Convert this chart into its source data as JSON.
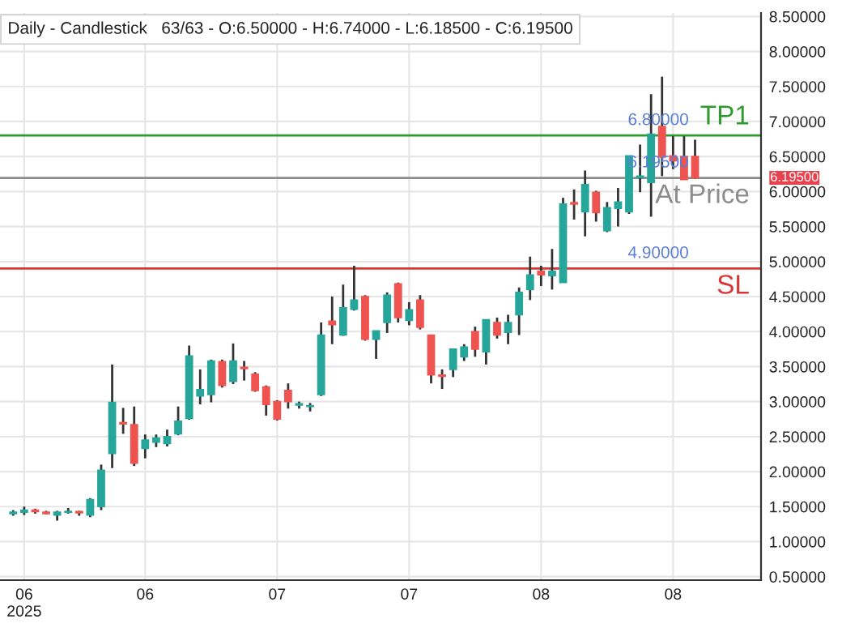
{
  "chart_data": {
    "type": "candlestick",
    "title": "Daily - Candlestick   63/63 - O:6.50000 - H:6.74000 - L:6.18500 - C:6.19500",
    "categories": [
      null,
      "06\n2025",
      null,
      null,
      null,
      null,
      null,
      null,
      null,
      null,
      null,
      null,
      "06",
      null,
      null,
      null,
      null,
      null,
      null,
      null,
      null,
      null,
      null,
      null,
      "07",
      null,
      null,
      null,
      null,
      null,
      null,
      null,
      null,
      null,
      null,
      null,
      "07",
      null,
      null,
      null,
      null,
      null,
      null,
      null,
      null,
      null,
      null,
      null,
      "08",
      null,
      null,
      null,
      null,
      null,
      null,
      null,
      null,
      null,
      null,
      null,
      "08",
      null,
      null
    ],
    "ohlc": [
      [
        1.4,
        1.45,
        1.37,
        1.42
      ],
      [
        1.42,
        1.5,
        1.38,
        1.45
      ],
      [
        1.45,
        1.47,
        1.4,
        1.43
      ],
      [
        1.42,
        1.44,
        1.39,
        1.4
      ],
      [
        1.38,
        1.44,
        1.3,
        1.42
      ],
      [
        1.42,
        1.48,
        1.4,
        1.43
      ],
      [
        1.43,
        1.44,
        1.37,
        1.41
      ],
      [
        1.38,
        1.62,
        1.35,
        1.6
      ],
      [
        1.5,
        2.1,
        1.45,
        2.02
      ],
      [
        2.26,
        3.53,
        2.05,
        2.99
      ],
      [
        2.7,
        2.91,
        2.54,
        2.68
      ],
      [
        2.67,
        2.93,
        2.08,
        2.12
      ],
      [
        2.33,
        2.53,
        2.19,
        2.45
      ],
      [
        2.42,
        2.53,
        2.35,
        2.48
      ],
      [
        2.4,
        2.6,
        2.36,
        2.5
      ],
      [
        2.54,
        2.93,
        2.52,
        2.72
      ],
      [
        2.76,
        3.8,
        2.74,
        3.65
      ],
      [
        3.08,
        3.46,
        2.96,
        3.17
      ],
      [
        3.1,
        3.6,
        2.99,
        3.58
      ],
      [
        3.57,
        3.6,
        3.2,
        3.23
      ],
      [
        3.29,
        3.83,
        3.25,
        3.58
      ],
      [
        3.49,
        3.58,
        3.3,
        3.47
      ],
      [
        3.39,
        3.42,
        3.14,
        3.16
      ],
      [
        3.21,
        3.23,
        2.8,
        2.96
      ],
      [
        3.0,
        3.02,
        2.73,
        2.75
      ],
      [
        3.16,
        3.26,
        2.9,
        3.0
      ],
      [
        2.95,
        3.0,
        2.9,
        2.97
      ],
      [
        2.93,
        2.98,
        2.86,
        2.94
      ],
      [
        3.1,
        4.13,
        3.08,
        3.95
      ],
      [
        4.15,
        4.5,
        3.82,
        4.1
      ],
      [
        3.95,
        4.67,
        3.94,
        4.34
      ],
      [
        4.32,
        4.94,
        4.3,
        4.45
      ],
      [
        4.5,
        4.52,
        3.87,
        3.89
      ],
      [
        3.89,
        4.01,
        3.61,
        4.01
      ],
      [
        4.13,
        4.56,
        3.98,
        4.52
      ],
      [
        4.68,
        4.7,
        4.13,
        4.2
      ],
      [
        4.16,
        4.42,
        4.09,
        4.31
      ],
      [
        4.45,
        4.52,
        4.03,
        4.06
      ],
      [
        3.95,
        3.95,
        3.26,
        3.38
      ],
      [
        3.38,
        3.46,
        3.18,
        3.36
      ],
      [
        3.46,
        3.75,
        3.35,
        3.75
      ],
      [
        3.64,
        3.82,
        3.58,
        3.78
      ],
      [
        4.0,
        4.07,
        3.64,
        3.75
      ],
      [
        3.71,
        4.17,
        3.53,
        4.17
      ],
      [
        4.13,
        4.2,
        3.9,
        3.95
      ],
      [
        3.99,
        4.24,
        3.82,
        4.13
      ],
      [
        4.24,
        4.63,
        3.95,
        4.56
      ],
      [
        4.6,
        5.07,
        4.45,
        4.81
      ],
      [
        4.86,
        4.94,
        4.65,
        4.81
      ],
      [
        4.8,
        5.18,
        4.6,
        4.86
      ],
      [
        4.7,
        5.91,
        4.7,
        5.82
      ],
      [
        5.84,
        6.03,
        5.6,
        5.82
      ],
      [
        5.71,
        6.3,
        5.36,
        6.1
      ],
      [
        5.99,
        6.01,
        5.57,
        5.7
      ],
      [
        5.44,
        5.85,
        5.42,
        5.77
      ],
      [
        5.76,
        6.05,
        5.5,
        5.85
      ],
      [
        5.71,
        6.51,
        5.68,
        6.51
      ],
      [
        6.2,
        6.67,
        5.99,
        6.22
      ],
      [
        6.13,
        7.39,
        5.64,
        6.82
      ],
      [
        6.93,
        7.64,
        6.22,
        6.49
      ],
      [
        6.51,
        6.79,
        6.32,
        6.44
      ],
      [
        6.5,
        6.79,
        6.17,
        6.17
      ],
      [
        6.5,
        6.74,
        6.185,
        6.195
      ]
    ],
    "colors": [
      "#26a69a",
      "#26a69a",
      "#ef5350",
      "#ef5350",
      "#26a69a",
      "#26a69a",
      "#ef5350",
      "#26a69a",
      "#26a69a",
      "#26a69a",
      "#ef5350",
      "#ef5350",
      "#26a69a",
      "#26a69a",
      "#26a69a",
      "#26a69a",
      "#26a69a",
      "#26a69a",
      "#26a69a",
      "#ef5350",
      "#26a69a",
      "#ef5350",
      "#ef5350",
      "#ef5350",
      "#ef5350",
      "#ef5350",
      "#26a69a",
      "#26a69a",
      "#26a69a",
      "#ef5350",
      "#26a69a",
      "#26a69a",
      "#ef5350",
      "#26a69a",
      "#26a69a",
      "#ef5350",
      "#26a69a",
      "#ef5350",
      "#ef5350",
      "#ef5350",
      "#26a69a",
      "#26a69a",
      "#ef5350",
      "#26a69a",
      "#ef5350",
      "#26a69a",
      "#26a69a",
      "#26a69a",
      "#ef5350",
      "#26a69a",
      "#26a69a",
      "#ef5350",
      "#26a69a",
      "#ef5350",
      "#26a69a",
      "#26a69a",
      "#26a69a",
      "#26a69a",
      "#26a69a",
      "#ef5350",
      "#ef5350",
      "#ef5350",
      "#ef5350"
    ],
    "ylim": [
      0.45,
      8.55
    ],
    "yticks": [
      {
        "value": 0.5,
        "label": "0.50000"
      },
      {
        "value": 1.0,
        "label": "1.00000"
      },
      {
        "value": 1.5,
        "label": "1.50000"
      },
      {
        "value": 2.0,
        "label": "2.00000"
      },
      {
        "value": 2.5,
        "label": "2.50000"
      },
      {
        "value": 3.0,
        "label": "3.00000"
      },
      {
        "value": 3.5,
        "label": "3.50000"
      },
      {
        "value": 4.0,
        "label": "4.00000"
      },
      {
        "value": 4.5,
        "label": "4.50000"
      },
      {
        "value": 5.0,
        "label": "5.00000"
      },
      {
        "value": 5.5,
        "label": "5.50000"
      },
      {
        "value": 6.0,
        "label": "6.00000"
      },
      {
        "value": 6.5,
        "label": "6.50000"
      },
      {
        "value": 7.0,
        "label": "7.00000"
      },
      {
        "value": 7.5,
        "label": "7.50000"
      },
      {
        "value": 8.0,
        "label": "8.00000"
      },
      {
        "value": 8.5,
        "label": "8.50000"
      }
    ],
    "ref_lines": [
      {
        "axis": "y",
        "value": 6.8,
        "label": "TP1",
        "color": "#2e9b2e"
      },
      {
        "axis": "y",
        "value": 6.195,
        "label": "At Price",
        "color": "#8c8c8c"
      },
      {
        "axis": "y",
        "value": 4.9,
        "label": "SL",
        "color": "#d93535"
      }
    ],
    "annotations": [
      "6.80000",
      "6.19500",
      "4.90000",
      "6.19500"
    ],
    "grid": true
  }
}
